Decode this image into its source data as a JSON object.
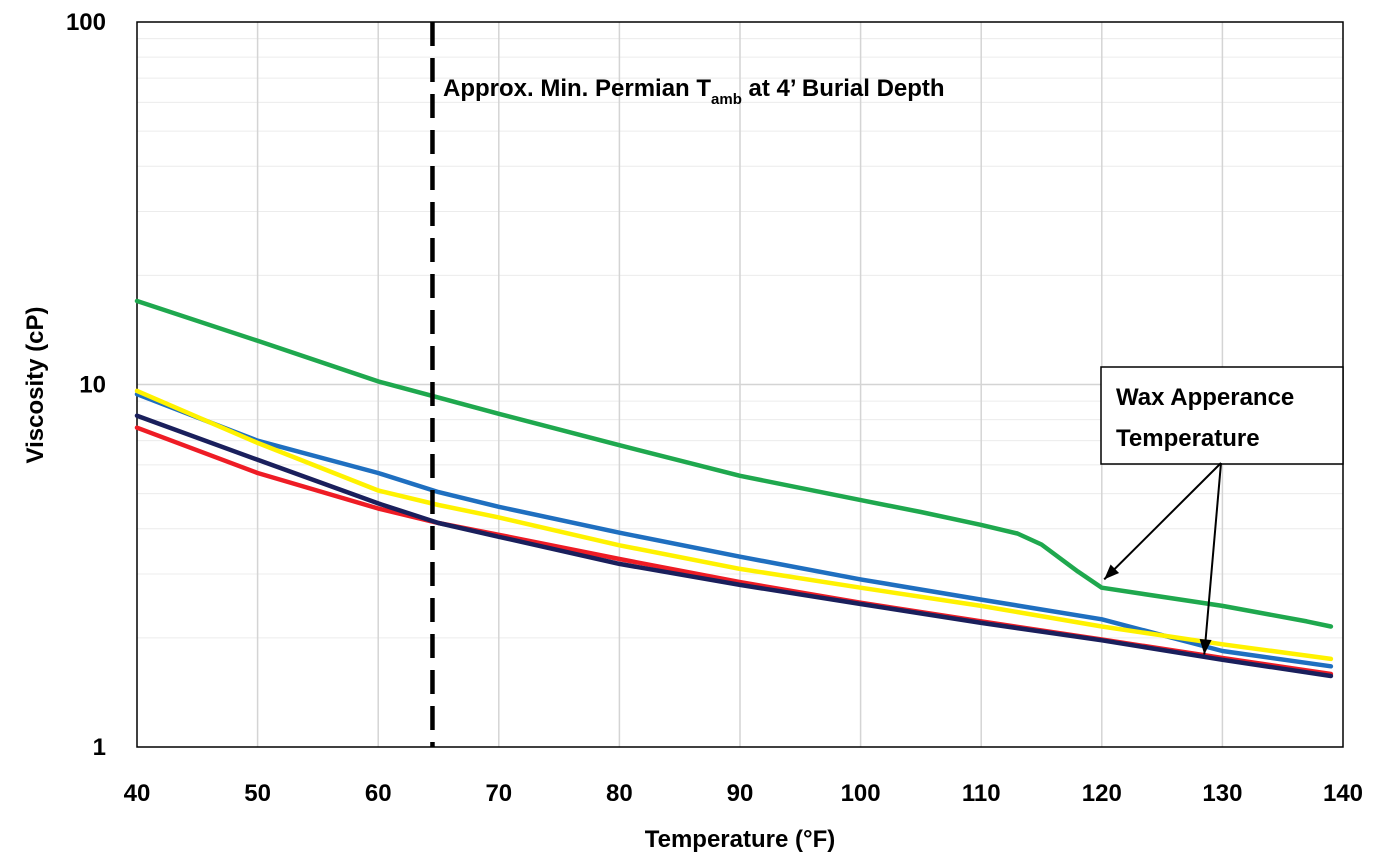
{
  "chart_data": {
    "type": "line",
    "title": "",
    "xlabel": "Temperature (°F)",
    "ylabel": "Viscosity (cP)",
    "xlim": [
      40,
      140
    ],
    "ylim": [
      1,
      100
    ],
    "y_scale": "log",
    "grid": true,
    "x_ticks": [
      "40",
      "50",
      "60",
      "70",
      "80",
      "90",
      "100",
      "110",
      "120",
      "130",
      "140"
    ],
    "y_ticks": [
      "1",
      "10",
      "100"
    ],
    "series": [
      {
        "color": "#1FA84E",
        "x": [
          40,
          50,
          60,
          65,
          70,
          80,
          90,
          100,
          105,
          110,
          113,
          115,
          118,
          120,
          130,
          137,
          139
        ],
        "y": [
          17.0,
          13.2,
          10.2,
          9.2,
          8.3,
          6.8,
          5.6,
          4.8,
          4.45,
          4.1,
          3.88,
          3.62,
          3.05,
          2.75,
          2.45,
          2.22,
          2.15
        ]
      },
      {
        "color": "#1F6FC0",
        "x": [
          40,
          50,
          60,
          65,
          70,
          80,
          90,
          100,
          110,
          120,
          130,
          139
        ],
        "y": [
          9.4,
          7.0,
          5.7,
          5.05,
          4.6,
          3.9,
          3.35,
          2.9,
          2.55,
          2.25,
          1.84,
          1.67
        ]
      },
      {
        "color": "#FFF200",
        "x": [
          40,
          50,
          60,
          65,
          70,
          80,
          90,
          100,
          110,
          120,
          130,
          139
        ],
        "y": [
          9.6,
          6.9,
          5.1,
          4.65,
          4.3,
          3.6,
          3.1,
          2.75,
          2.45,
          2.15,
          1.92,
          1.75
        ]
      },
      {
        "color": "#EE1C25",
        "x": [
          40,
          50,
          60,
          65,
          70,
          80,
          90,
          100,
          110,
          120,
          130,
          139
        ],
        "y": [
          7.6,
          5.7,
          4.55,
          4.15,
          3.85,
          3.3,
          2.85,
          2.5,
          2.22,
          1.98,
          1.76,
          1.59
        ]
      },
      {
        "color": "#1A1F5C",
        "x": [
          40,
          50,
          60,
          65,
          70,
          80,
          90,
          100,
          110,
          120,
          130,
          139
        ],
        "y": [
          8.2,
          6.2,
          4.7,
          4.15,
          3.8,
          3.2,
          2.8,
          2.48,
          2.2,
          1.97,
          1.74,
          1.57
        ]
      }
    ],
    "annotations": {
      "vline_x": 64.5,
      "tamb_label_pre": "Approx. Min. Permian T",
      "tamb_label_sub": "amb",
      "tamb_label_post": " at 4’ Burial Depth",
      "wax_label_line1": "Wax Apperance",
      "wax_label_line2": "Temperature",
      "wax_arrow_targets": [
        {
          "x": 120.2,
          "y": 2.9
        },
        {
          "x": 128.5,
          "y": 1.8
        }
      ]
    }
  }
}
